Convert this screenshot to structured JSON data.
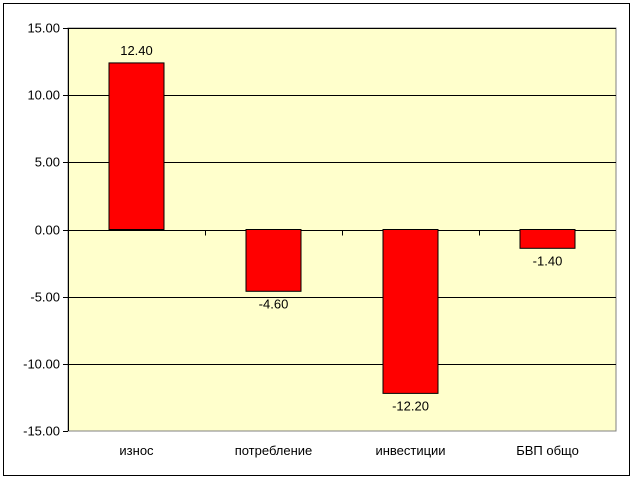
{
  "chart_data": {
    "type": "bar",
    "title": "",
    "xlabel": "",
    "ylabel": "",
    "categories": [
      "износ",
      "потребление",
      "инвестиции",
      "БВП общо"
    ],
    "values": [
      12.4,
      -4.6,
      -12.2,
      -1.4
    ],
    "data_labels": [
      "12.40",
      "-4.60",
      "-12.20",
      "-1.40"
    ],
    "ylim": [
      -15,
      15
    ],
    "y_ticks": [
      15,
      10,
      5,
      0,
      -5,
      -10,
      -15
    ],
    "y_tick_labels": [
      "15.00",
      "10.00",
      "5.00",
      "0.00",
      "-5.00",
      "-10.00",
      "-15.00"
    ],
    "grid": true,
    "legend": "none",
    "colors": {
      "bar_fill": "#ff0000",
      "bar_stroke": "#000000",
      "plot_bg": "#ffffcc",
      "grid": "#000000"
    }
  }
}
